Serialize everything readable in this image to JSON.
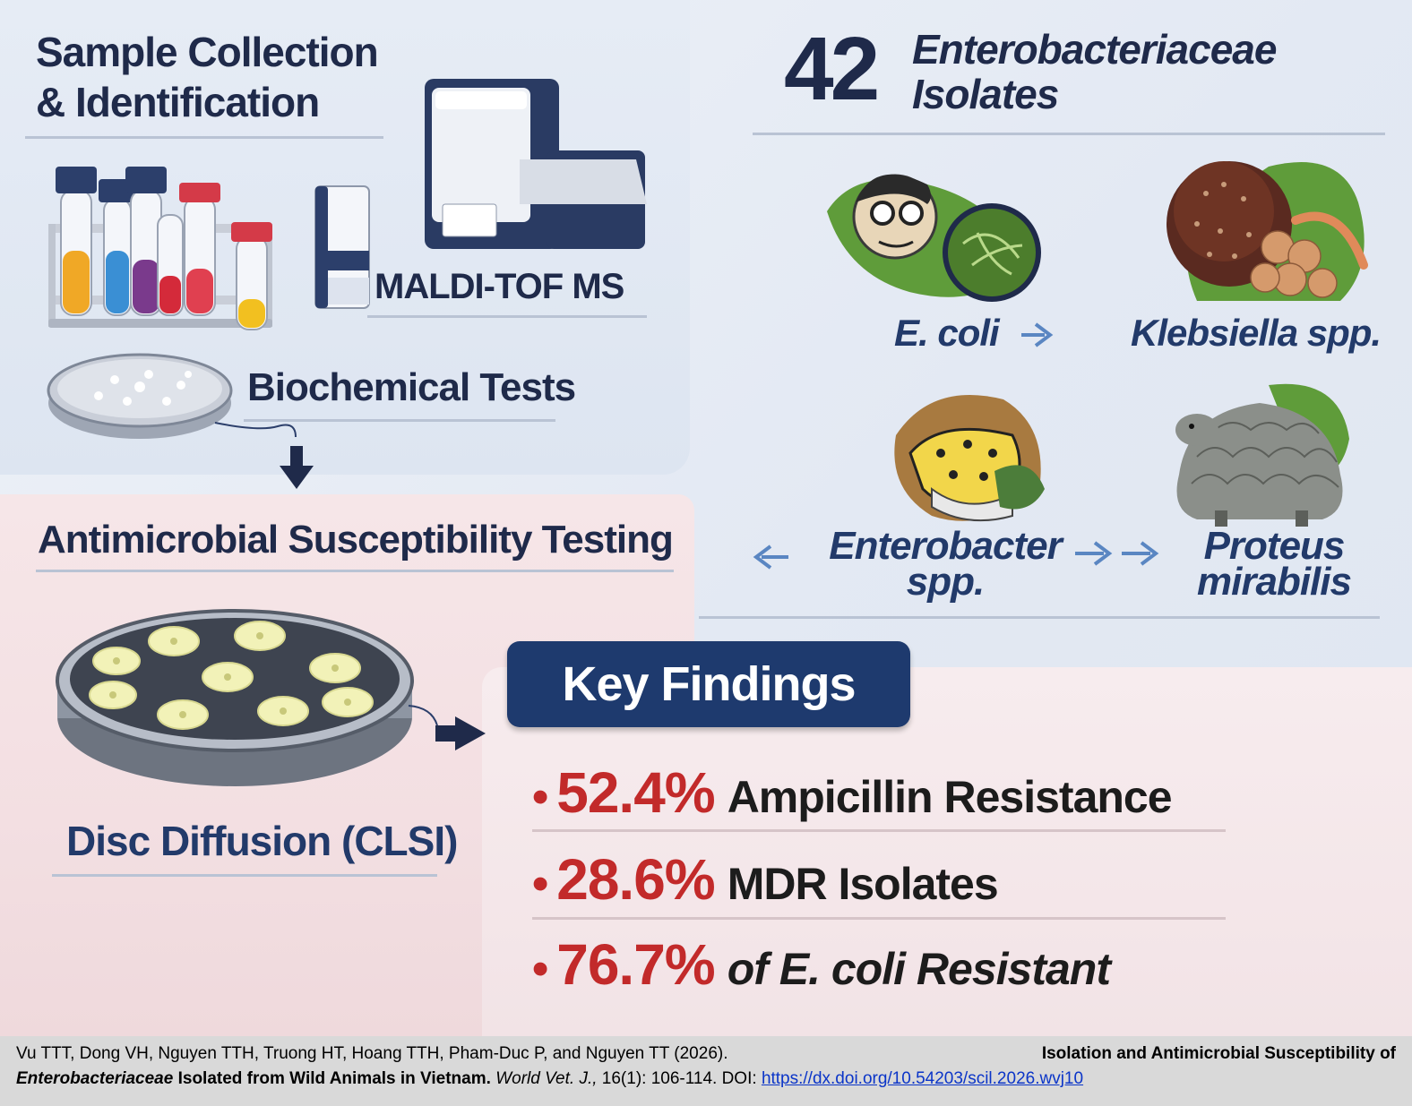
{
  "sample": {
    "title_line1": "Sample Collection",
    "title_line2": "& Identification",
    "maldi_label": "MALDI-TOF MS",
    "biochem_label": "Biochemical Tests"
  },
  "isolates": {
    "count": "42",
    "title_line1": "Enterobacteriaceae",
    "title_line2": "Isolates",
    "species": [
      {
        "name": "E. coli"
      },
      {
        "name": "Klebsiella spp."
      },
      {
        "name_line1": "Enterobacter",
        "name_line2": "spp."
      },
      {
        "name_line1": "Proteus",
        "name_line2": "mirabilis"
      }
    ]
  },
  "ast": {
    "title": "Antimicrobial Susceptibility Testing",
    "method_label": "Disc Diffusion (CLSI)"
  },
  "findings": {
    "title": "Key Findings",
    "items": [
      {
        "percent": "52.4%",
        "text": "Ampicillin Resistance"
      },
      {
        "percent": "28.6%",
        "text": "MDR Isolates"
      },
      {
        "percent": "76.7%",
        "text": "of E. coli Resistant"
      }
    ]
  },
  "citation": {
    "authors": "Vu TTT, Dong VH, Nguyen TTH, Truong HT, Hoang TTH, Pham-Duc P, and Nguyen TT (2026).",
    "title_part1": "Isolation and Antimicrobial Susceptibility of",
    "title_italic": "Enterobacteriaceae",
    "title_part2": "Isolated from Wild Animals in Vietnam.",
    "journal": "World Vet. J.,",
    "volume": "16(1): 106-114. DOI:",
    "doi": "https://dx.doi.org/10.54203/scil.2026.wvj10"
  },
  "colors": {
    "navy": "#1f2a4a",
    "banner": "#1e3a6e",
    "accent_red": "#c22a2a",
    "link": "#0b35c8"
  }
}
